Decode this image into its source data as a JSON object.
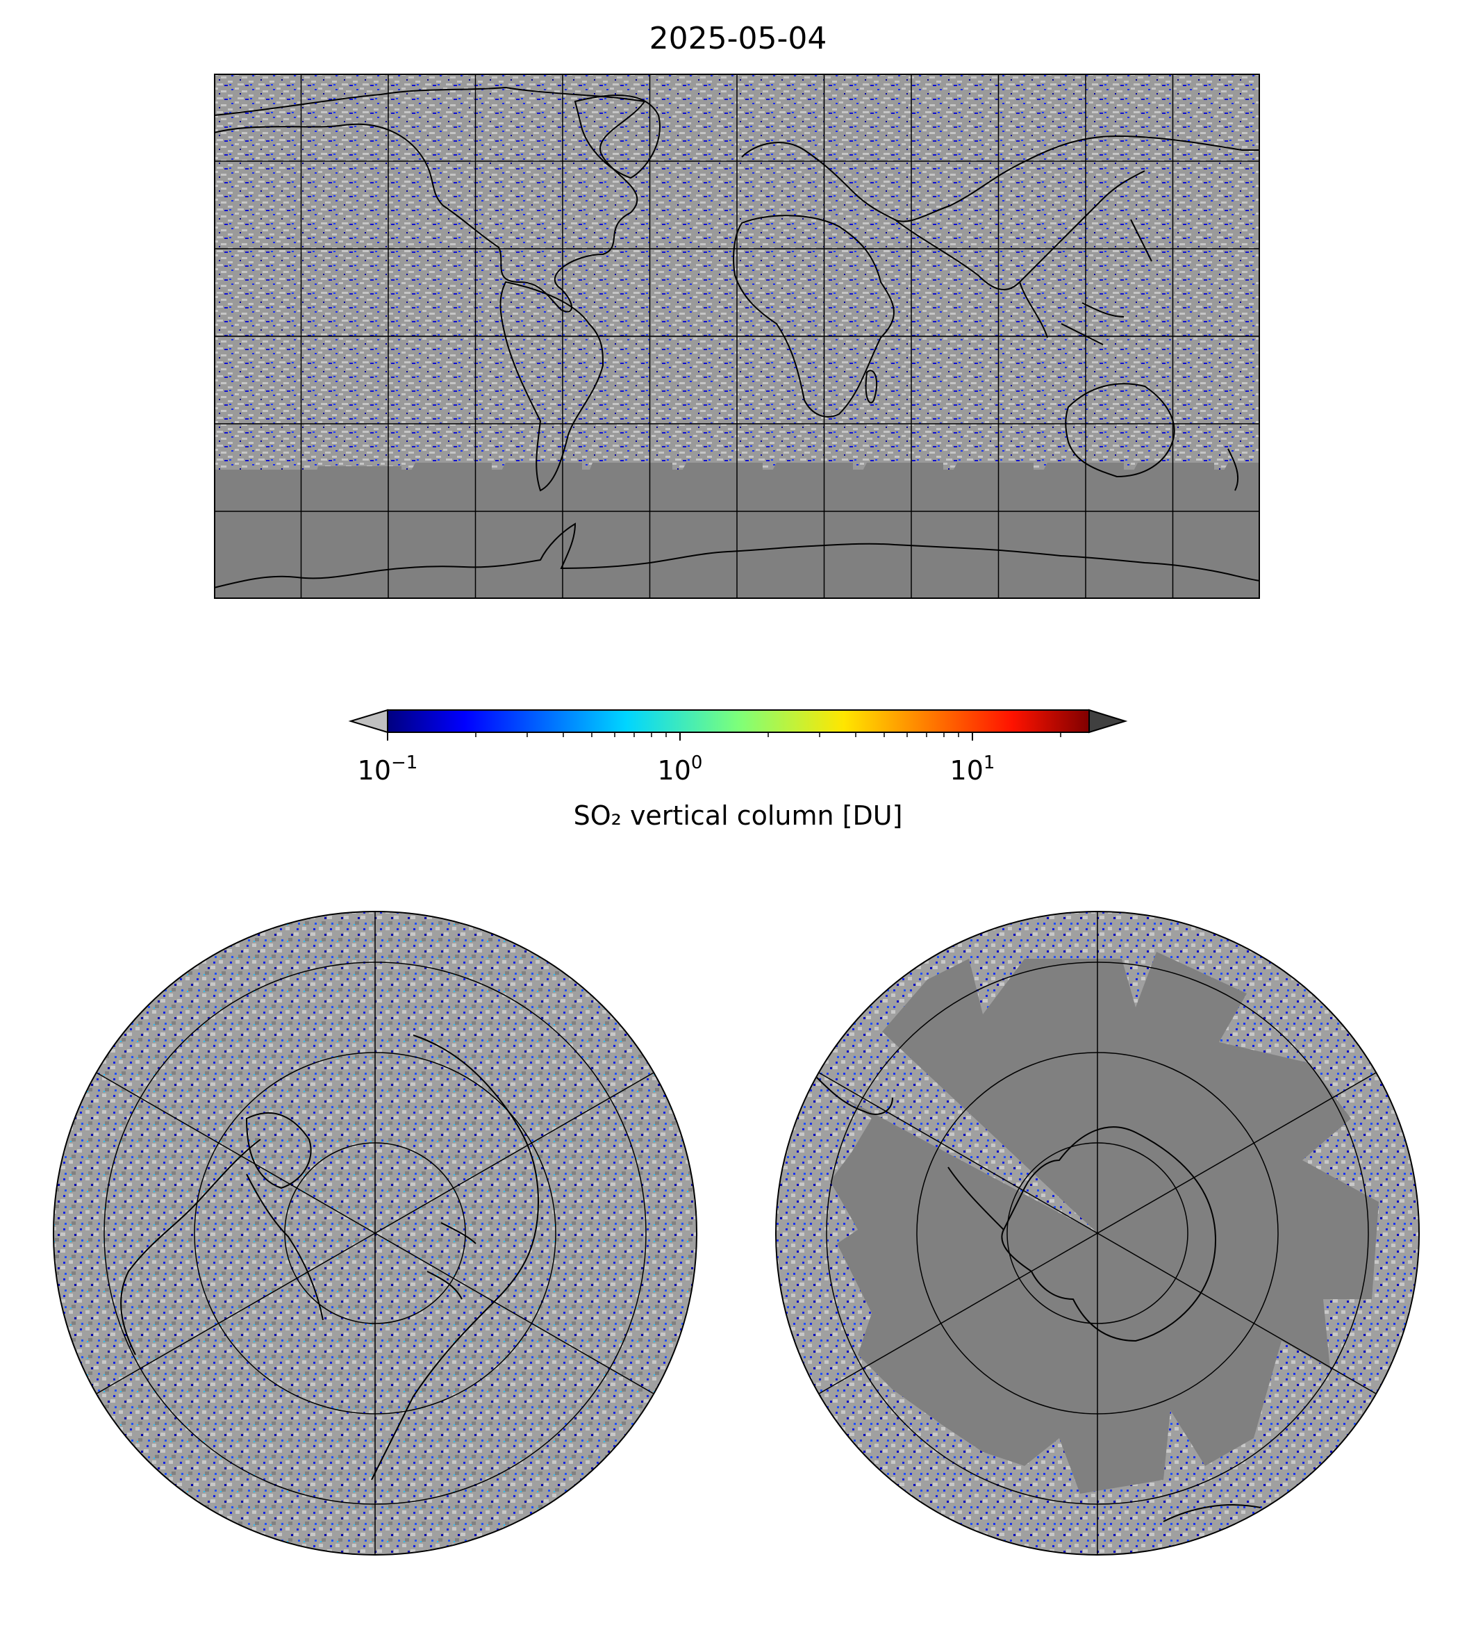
{
  "title": "2025-05-04",
  "colorbar": {
    "label": "SO₂ vertical column [DU]",
    "scale": "log",
    "range_DU": [
      0.1,
      25
    ],
    "ticks": [
      {
        "base": "10",
        "exp": "−1",
        "value": 0.1
      },
      {
        "base": "10",
        "exp": "0",
        "value": 1
      },
      {
        "base": "10",
        "exp": "1",
        "value": 10
      }
    ],
    "colormap": "jet",
    "extend_low_color": "#c0c0c0",
    "extend_high_color": "#404040"
  },
  "colors": {
    "no_data": "#808080",
    "background_low": "#b4b4b4",
    "coastline": "#000000",
    "gridline": "#000000"
  },
  "map": {
    "projection": "PlateCarree",
    "gridline_spacing_deg": 30,
    "panels": [
      "global",
      "north-polar-stereographic",
      "south-polar-stereographic"
    ]
  }
}
